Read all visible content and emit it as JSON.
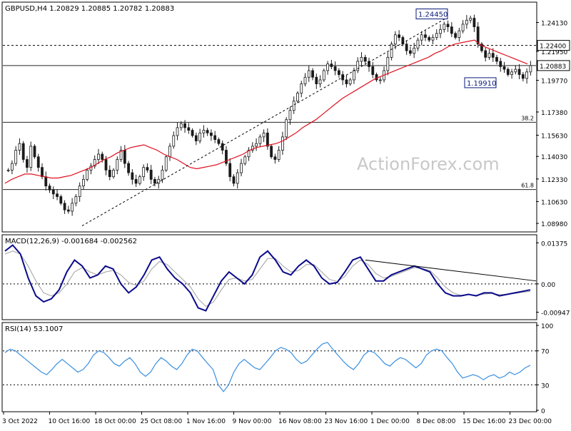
{
  "chart_data": {
    "type": "candlestick",
    "symbol": "GBPUSD,H4",
    "ohlc_header": "GBPUSD,H4  1.20829 1.20885 1.20782 1.20883",
    "watermark": "ActionForex.com",
    "price_panel": {
      "y_ticks": [
        "1.24130",
        "1.21950",
        "1.19770",
        "1.17380",
        "1.15630",
        "1.14030",
        "1.12330",
        "1.10630",
        "1.08980"
      ],
      "ylim": [
        1.085,
        1.255
      ],
      "current_price": "1.20883",
      "level_tag": "1.22400",
      "annotations": [
        {
          "label": "1.24450",
          "value": 1.2445
        },
        {
          "label": "1.19910",
          "value": 1.1991
        }
      ],
      "fibonacci": [
        {
          "label": "38.2",
          "value": 1.166
        },
        {
          "label": "61.8",
          "value": 1.1153
        }
      ],
      "dashed_levels": [
        1.224
      ],
      "solid_levels": [
        1.2088,
        1.166,
        1.1153
      ],
      "price_series": [
        1.13,
        1.135,
        1.145,
        1.15,
        1.138,
        1.132,
        1.148,
        1.14,
        1.132,
        1.125,
        1.118,
        1.115,
        1.112,
        1.11,
        1.105,
        1.1,
        1.099,
        1.105,
        1.11,
        1.118,
        1.123,
        1.13,
        1.133,
        1.138,
        1.142,
        1.138,
        1.13,
        1.125,
        1.13,
        1.138,
        1.145,
        1.135,
        1.128,
        1.123,
        1.12,
        1.125,
        1.132,
        1.13,
        1.123,
        1.12,
        1.123,
        1.13,
        1.14,
        1.148,
        1.156,
        1.162,
        1.165,
        1.162,
        1.16,
        1.156,
        1.152,
        1.158,
        1.16,
        1.158,
        1.156,
        1.153,
        1.15,
        1.145,
        1.135,
        1.125,
        1.12,
        1.128,
        1.135,
        1.14,
        1.145,
        1.148,
        1.15,
        1.155,
        1.158,
        1.148,
        1.14,
        1.138,
        1.145,
        1.155,
        1.168,
        1.175,
        1.182,
        1.188,
        1.195,
        1.2,
        1.205,
        1.2,
        1.195,
        1.198,
        1.205,
        1.21,
        1.208,
        1.205,
        1.202,
        1.198,
        1.195,
        1.198,
        1.205,
        1.212,
        1.215,
        1.212,
        1.208,
        1.202,
        1.198,
        1.198,
        1.205,
        1.215,
        1.225,
        1.232,
        1.23,
        1.225,
        1.22,
        1.218,
        1.222,
        1.228,
        1.232,
        1.23,
        1.228,
        1.23,
        1.233,
        1.236,
        1.24,
        1.238,
        1.233,
        1.23,
        1.235,
        1.24,
        1.243,
        1.2445,
        1.238,
        1.225,
        1.22,
        1.215,
        1.218,
        1.215,
        1.212,
        1.208,
        1.206,
        1.202,
        1.204,
        1.206,
        1.202,
        1.1991,
        1.204,
        1.2088
      ],
      "ma_series": [
        1.12,
        1.123,
        1.125,
        1.127,
        1.127,
        1.126,
        1.125,
        1.124,
        1.124,
        1.125,
        1.126,
        1.128,
        1.13,
        1.132,
        1.135,
        1.138,
        1.14,
        1.143,
        1.145,
        1.147,
        1.148,
        1.149,
        1.147,
        1.145,
        1.142,
        1.14,
        1.138,
        1.135,
        1.132,
        1.131,
        1.132,
        1.133,
        1.134,
        1.136,
        1.138,
        1.14,
        1.142,
        1.145,
        1.147,
        1.148,
        1.149,
        1.15,
        1.152,
        1.155,
        1.158,
        1.162,
        1.165,
        1.168,
        1.172,
        1.176,
        1.18,
        1.184,
        1.187,
        1.19,
        1.193,
        1.196,
        1.199,
        1.201,
        1.203,
        1.205,
        1.207,
        1.209,
        1.211,
        1.213,
        1.215,
        1.218,
        1.22,
        1.223,
        1.225,
        1.226,
        1.227,
        1.228,
        1.224,
        1.222,
        1.22,
        1.218,
        1.216,
        1.214,
        1.212,
        1.21
      ]
    },
    "macd_panel": {
      "label": "MACD(12,26,9) -0.001684 -0.002562",
      "y_ticks": [
        "0.01375",
        "0.00",
        "-0.00947"
      ],
      "ylim": [
        -0.0115,
        0.0155
      ],
      "macd": [
        0.011,
        0.013,
        0.01,
        0.002,
        -0.004,
        -0.006,
        -0.005,
        -0.002,
        0.004,
        0.008,
        0.006,
        0.002,
        0.003,
        0.006,
        0.005,
        0.0,
        -0.003,
        -0.001,
        0.003,
        0.008,
        0.009,
        0.005,
        0.002,
        0.0,
        -0.003,
        -0.008,
        -0.009,
        -0.004,
        0.001,
        0.004,
        0.002,
        0.0,
        0.003,
        0.009,
        0.011,
        0.008,
        0.004,
        0.003,
        0.006,
        0.008,
        0.006,
        0.002,
        0.0,
        0.0005,
        0.004,
        0.008,
        0.009,
        0.005,
        0.001,
        0.001,
        0.003,
        0.004,
        0.005,
        0.006,
        0.005,
        0.004,
        0.0,
        -0.003,
        -0.004,
        -0.004,
        -0.0035,
        -0.004,
        -0.003,
        -0.003,
        -0.004,
        -0.0035,
        -0.003,
        -0.0025,
        -0.002
      ],
      "signal": [
        0.01,
        0.011,
        0.01,
        0.006,
        0.001,
        -0.003,
        -0.004,
        -0.003,
        0.0,
        0.004,
        0.0055,
        0.004,
        0.003,
        0.004,
        0.0045,
        0.003,
        0.0005,
        -0.0005,
        0.001,
        0.005,
        0.0075,
        0.0065,
        0.004,
        0.0015,
        -0.001,
        -0.005,
        -0.0075,
        -0.006,
        -0.002,
        0.0015,
        0.002,
        0.001,
        0.0015,
        0.005,
        0.0085,
        0.0085,
        0.006,
        0.004,
        0.0045,
        0.0065,
        0.0065,
        0.004,
        0.0015,
        0.0008,
        0.0025,
        0.006,
        0.008,
        0.0065,
        0.0035,
        0.002,
        0.0025,
        0.0035,
        0.0045,
        0.0055,
        0.0052,
        0.0045,
        0.002,
        -0.001,
        -0.003,
        -0.0038,
        -0.0036,
        -0.0038,
        -0.0034,
        -0.0032,
        -0.0036,
        -0.0035,
        -0.0032,
        -0.0028,
        -0.0025
      ],
      "trendline": [
        [
          0.68,
          0.008
        ],
        [
          1.0,
          0.001
        ]
      ]
    },
    "rsi_panel": {
      "label": "RSI(14) 53.1007",
      "y_ticks": [
        "100",
        "70",
        "30",
        "0"
      ],
      "ylim": [
        0,
        100
      ],
      "levels": [
        70,
        30
      ],
      "rsi": [
        68,
        72,
        70,
        65,
        60,
        55,
        50,
        45,
        42,
        48,
        55,
        60,
        55,
        50,
        45,
        48,
        55,
        65,
        70,
        68,
        62,
        55,
        52,
        58,
        62,
        55,
        45,
        40,
        45,
        55,
        62,
        58,
        52,
        48,
        55,
        65,
        72,
        70,
        62,
        55,
        48,
        30,
        22,
        30,
        45,
        55,
        60,
        55,
        50,
        48,
        55,
        62,
        70,
        74,
        72,
        68,
        60,
        55,
        58,
        65,
        72,
        78,
        80,
        72,
        65,
        58,
        52,
        48,
        55,
        65,
        70,
        68,
        62,
        55,
        52,
        58,
        62,
        60,
        55,
        50,
        55,
        65,
        70,
        72,
        70,
        62,
        55,
        45,
        38,
        40,
        42,
        40,
        36,
        40,
        42,
        38,
        40,
        45,
        42,
        45,
        50,
        53
      ]
    },
    "x_ticks": [
      "3 Oct 2022",
      "10 Oct 16:00",
      "18 Oct 00:00",
      "25 Oct 08:00",
      "1 Nov 16:00",
      "9 Nov 00:00",
      "16 Nov 08:00",
      "23 Nov 16:00",
      "1 Dec 00:00",
      "8 Dec 08:00",
      "15 Dec 16:00",
      "23 Dec 00:00"
    ],
    "colors": {
      "candle": "#1a1a1a",
      "ma": "#e01020",
      "macd": "#0a0a8a",
      "signal": "#a0a0a0",
      "rsi": "#3a8fe0",
      "grid": "#000000",
      "tag_border": "#0a1a7a"
    }
  }
}
